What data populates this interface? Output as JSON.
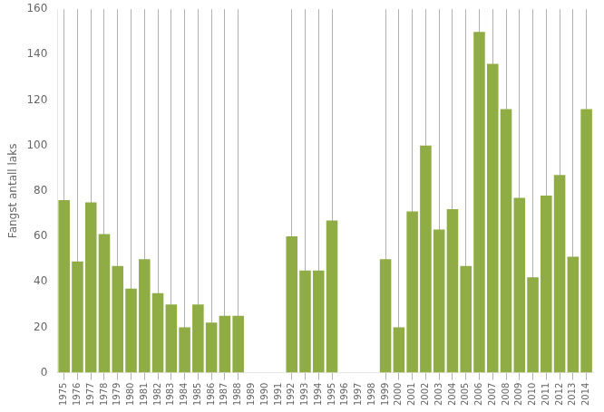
{
  "chart_data": {
    "type": "bar",
    "categories": [
      "1975",
      "1976",
      "1977",
      "1978",
      "1979",
      "1980",
      "1981",
      "1982",
      "1983",
      "1984",
      "1985",
      "1986",
      "1987",
      "1988",
      "1989",
      "1990",
      "1991",
      "1992",
      "1993",
      "1994",
      "1995",
      "1996",
      "1997",
      "1998",
      "1999",
      "2000",
      "2001",
      "2002",
      "2003",
      "2004",
      "2005",
      "2006",
      "2007",
      "2008",
      "2009",
      "2010",
      "2011",
      "2012",
      "2013",
      "2014"
    ],
    "values": [
      76,
      49,
      75,
      61,
      47,
      37,
      50,
      35,
      30,
      20,
      30,
      22,
      25,
      25,
      0,
      0,
      0,
      60,
      45,
      45,
      67,
      0,
      0,
      0,
      50,
      20,
      71,
      100,
      63,
      72,
      47,
      150,
      136,
      116,
      77,
      42,
      78,
      87,
      51,
      116
    ],
    "color": "#8fac45",
    "ylabel": "Fangst antall laks",
    "ylim": [
      0,
      160
    ],
    "yticks": [
      0,
      20,
      40,
      60,
      80,
      100,
      120,
      140,
      160
    ],
    "grid": true
  }
}
